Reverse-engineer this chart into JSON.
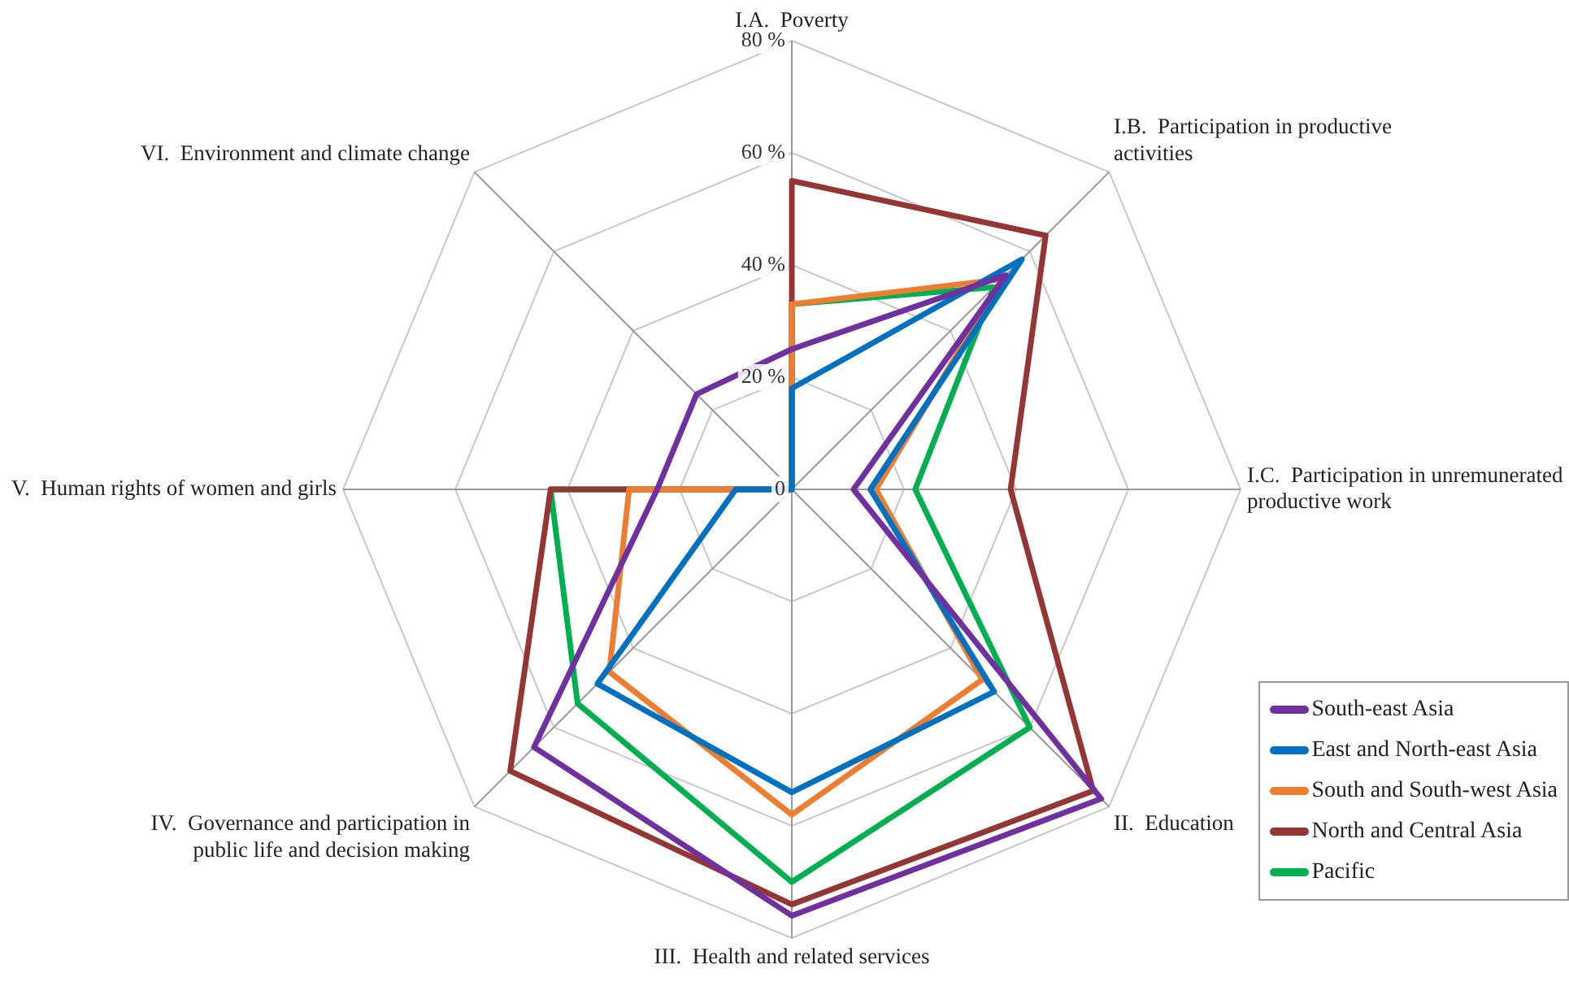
{
  "chart_data": {
    "type": "radar",
    "categories": [
      "I.A.  Poverty",
      "I.B.  Participation in productive activities",
      "I.C.  Participation in unremunerated productive work",
      "II.  Education",
      "III.  Health and related services",
      "IV.  Governance and participation in public life and decision making",
      "V.  Human rights of women and girls",
      "VI.  Environment and climate change"
    ],
    "series": [
      {
        "name": "South-east Asia",
        "color": "#7030a0",
        "values": [
          25,
          54,
          11,
          78,
          76,
          65,
          24,
          24
        ]
      },
      {
        "name": "East and North-east Asia",
        "color": "#0070c0",
        "values": [
          18,
          58,
          14,
          51,
          54,
          49,
          10,
          0
        ]
      },
      {
        "name": "South and South-west Asia",
        "color": "#ed7d31",
        "values": [
          33,
          53,
          15,
          48,
          58,
          46,
          29,
          0
        ]
      },
      {
        "name": "North and Central Asia",
        "color": "#943634",
        "values": [
          55,
          64,
          39,
          76,
          74,
          71,
          43,
          0
        ]
      },
      {
        "name": "Pacific",
        "color": "#00b050",
        "values": [
          33,
          51,
          22,
          60,
          70,
          54,
          43,
          0
        ]
      }
    ],
    "ylim": [
      0,
      80
    ],
    "yticks": [
      {
        "value": 0,
        "label": "0"
      },
      {
        "value": 20,
        "label": "20 %"
      },
      {
        "value": 40,
        "label": "40 %"
      },
      {
        "value": 60,
        "label": "60 %"
      },
      {
        "value": 80,
        "label": "80 %"
      }
    ],
    "grid": true,
    "legend": "bottom right",
    "marker": "none",
    "line_style": "solid"
  }
}
